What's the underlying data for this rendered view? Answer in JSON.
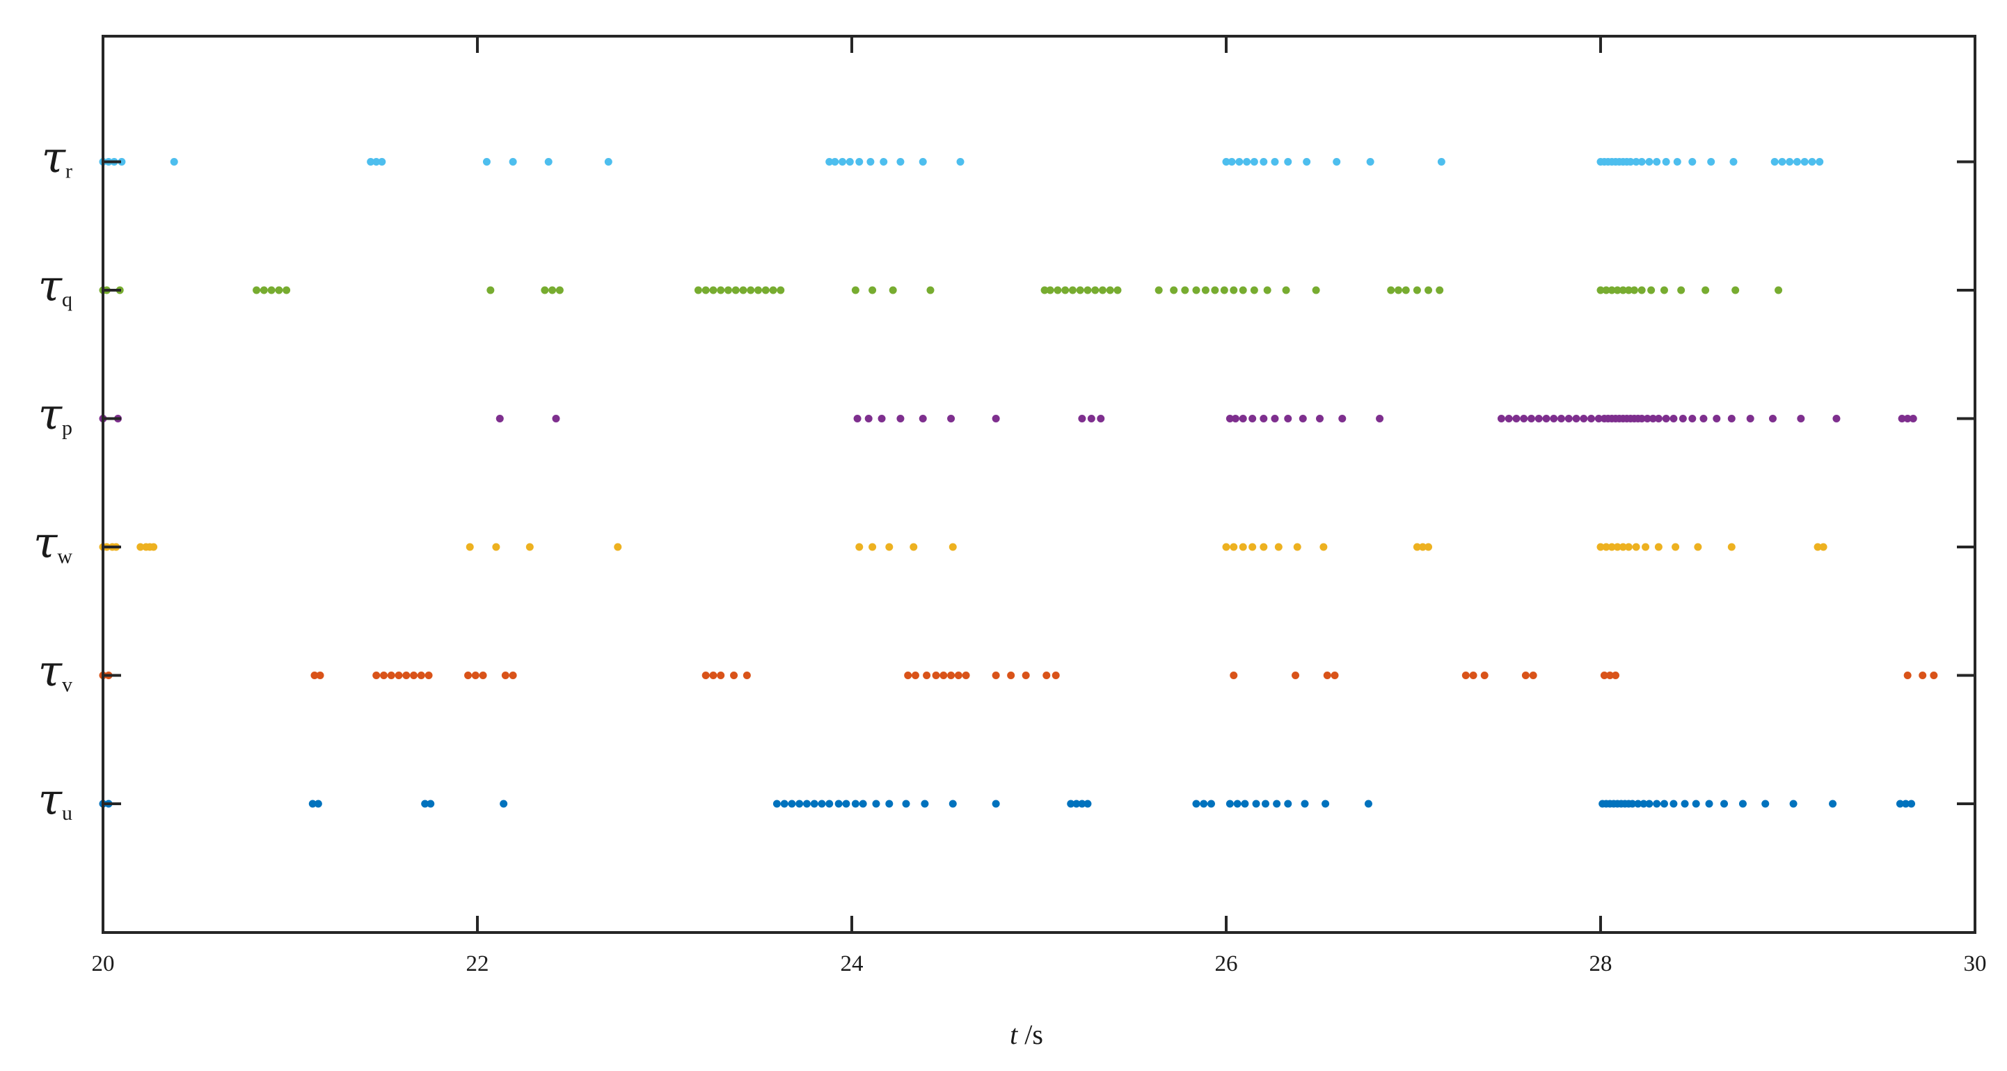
{
  "chart_data": {
    "type": "scatter",
    "title": "",
    "xlabel": {
      "var": "t",
      "unit": " /s"
    },
    "xlim": [
      20,
      30
    ],
    "xticks": [
      "20",
      "22",
      "24",
      "26",
      "28",
      "30"
    ],
    "grid": false,
    "legend": "none",
    "categories": [
      {
        "symbol": "τ",
        "sub": "u",
        "color": "#0072BD"
      },
      {
        "symbol": "τ",
        "sub": "v",
        "color": "#D95319"
      },
      {
        "symbol": "τ",
        "sub": "w",
        "color": "#EDB120"
      },
      {
        "symbol": "τ",
        "sub": "p",
        "color": "#7E2F8E"
      },
      {
        "symbol": "τ",
        "sub": "q",
        "color": "#77AC30"
      },
      {
        "symbol": "τ",
        "sub": "r",
        "color": "#4DBEEE"
      }
    ],
    "series": [
      {
        "category": "u",
        "x": [
          20.0,
          20.03,
          21.12,
          21.15,
          21.72,
          21.75,
          22.14,
          23.6,
          23.64,
          23.68,
          23.72,
          23.76,
          23.8,
          23.84,
          23.88,
          23.93,
          23.97,
          24.02,
          24.06,
          24.13,
          24.2,
          24.29,
          24.39,
          24.54,
          24.77,
          25.17,
          25.2,
          25.23,
          25.26,
          25.84,
          25.88,
          25.92,
          26.02,
          26.06,
          26.1,
          26.16,
          26.21,
          26.27,
          26.33,
          26.42,
          26.53,
          26.76,
          28.01,
          28.03,
          28.05,
          28.07,
          28.09,
          28.11,
          28.13,
          28.15,
          28.17,
          28.2,
          28.23,
          28.26,
          28.3,
          28.34,
          28.39,
          28.45,
          28.51,
          28.58,
          28.66,
          28.76,
          28.88,
          29.03,
          29.24,
          29.6,
          29.63,
          29.66
        ]
      },
      {
        "category": "v",
        "x": [
          20.0,
          20.03,
          21.13,
          21.16,
          21.46,
          21.5,
          21.54,
          21.58,
          21.62,
          21.66,
          21.7,
          21.74,
          21.95,
          21.99,
          22.03,
          22.15,
          22.19,
          23.22,
          23.26,
          23.3,
          23.37,
          23.44,
          24.3,
          24.34,
          24.4,
          24.45,
          24.49,
          24.53,
          24.57,
          24.61,
          24.77,
          24.85,
          24.93,
          25.04,
          25.09,
          26.04,
          26.37,
          26.54,
          26.58,
          27.28,
          27.32,
          27.38,
          27.6,
          27.64,
          28.02,
          28.05,
          28.08,
          29.64,
          29.72,
          29.78
        ]
      },
      {
        "category": "w",
        "x": [
          20.0,
          20.02,
          20.05,
          20.07,
          20.2,
          20.23,
          20.25,
          20.27,
          21.96,
          22.1,
          22.28,
          22.75,
          24.04,
          24.11,
          24.2,
          24.33,
          24.54,
          26.0,
          26.04,
          26.09,
          26.14,
          26.2,
          26.28,
          26.38,
          26.52,
          27.02,
          27.05,
          27.08,
          28.0,
          28.03,
          28.06,
          28.09,
          28.12,
          28.15,
          28.19,
          28.24,
          28.31,
          28.4,
          28.52,
          28.7,
          29.16,
          29.19
        ]
      },
      {
        "category": "p",
        "x": [
          20.0,
          20.08,
          22.12,
          22.42,
          24.03,
          24.09,
          24.16,
          24.26,
          24.38,
          24.53,
          24.77,
          25.23,
          25.28,
          25.33,
          26.02,
          26.05,
          26.09,
          26.14,
          26.2,
          26.26,
          26.33,
          26.41,
          26.5,
          26.62,
          26.82,
          27.47,
          27.51,
          27.55,
          27.59,
          27.63,
          27.67,
          27.71,
          27.75,
          27.79,
          27.83,
          27.87,
          27.91,
          27.95,
          27.99,
          28.02,
          28.04,
          28.06,
          28.08,
          28.1,
          28.12,
          28.14,
          28.16,
          28.18,
          28.2,
          28.22,
          28.25,
          28.28,
          28.31,
          28.35,
          28.39,
          28.44,
          28.49,
          28.55,
          28.62,
          28.7,
          28.8,
          28.92,
          29.07,
          29.26,
          29.61,
          29.64,
          29.67
        ]
      },
      {
        "category": "q",
        "x": [
          20.0,
          20.02,
          20.09,
          20.82,
          20.86,
          20.9,
          20.94,
          20.98,
          22.07,
          22.36,
          22.4,
          22.44,
          23.18,
          23.22,
          23.26,
          23.3,
          23.34,
          23.38,
          23.42,
          23.46,
          23.5,
          23.54,
          23.58,
          23.62,
          24.02,
          24.11,
          24.22,
          24.42,
          25.03,
          25.06,
          25.1,
          25.14,
          25.18,
          25.22,
          25.26,
          25.3,
          25.34,
          25.38,
          25.42,
          25.64,
          25.72,
          25.78,
          25.84,
          25.89,
          25.94,
          25.99,
          26.04,
          26.09,
          26.15,
          26.22,
          26.32,
          26.48,
          26.88,
          26.92,
          26.96,
          27.02,
          27.08,
          27.14,
          28.0,
          28.03,
          28.06,
          28.09,
          28.12,
          28.15,
          28.18,
          28.22,
          28.27,
          28.34,
          28.43,
          28.56,
          28.72,
          28.95
        ]
      },
      {
        "category": "r",
        "x": [
          20.0,
          20.03,
          20.06,
          20.1,
          20.38,
          21.43,
          21.46,
          21.49,
          22.05,
          22.19,
          22.38,
          22.7,
          23.88,
          23.91,
          23.95,
          23.99,
          24.04,
          24.1,
          24.17,
          24.26,
          24.38,
          24.58,
          26.0,
          26.03,
          26.07,
          26.11,
          26.15,
          26.2,
          26.26,
          26.33,
          26.43,
          26.59,
          26.77,
          27.15,
          28.0,
          28.02,
          28.04,
          28.06,
          28.08,
          28.1,
          28.12,
          28.14,
          28.16,
          28.19,
          28.22,
          28.26,
          28.3,
          28.35,
          28.41,
          28.49,
          28.59,
          28.71,
          28.93,
          28.97,
          29.01,
          29.05,
          29.09,
          29.13,
          29.17
        ]
      }
    ]
  }
}
